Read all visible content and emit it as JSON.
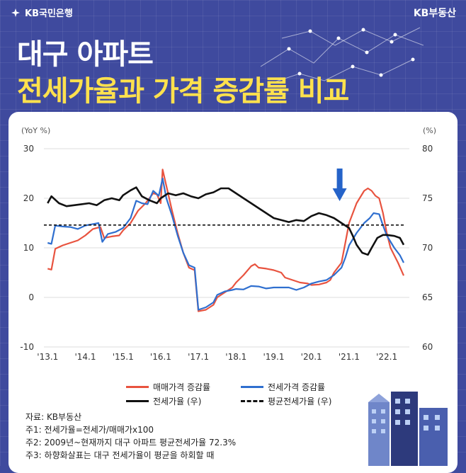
{
  "header": {
    "brand_left": "KB국민은행",
    "brand_right": "KB부동산",
    "title_line1": "대구 아파트",
    "title_line2": "전세가율과 가격 증감률 비교"
  },
  "colors": {
    "background": "#3f4a9e",
    "title_accent": "#ffe14d",
    "sale": "#e8533f",
    "jeonse": "#2f6fcf",
    "ratio": "#111111",
    "arrow": "#2563c9"
  },
  "chart_data": {
    "type": "line",
    "left_axis_label": "(YoY %)",
    "right_axis_label": "(%)",
    "left_ylim": [
      -10,
      30
    ],
    "left_ticks": [
      "30",
      "20",
      "10",
      "0",
      "-10"
    ],
    "right_ylim": [
      60,
      80
    ],
    "right_ticks": [
      "80",
      "75",
      "70",
      "65",
      "60"
    ],
    "x_ticks": [
      "'13.1",
      "'14.1",
      "'15.1",
      "'16.1",
      "'17.1",
      "'18.1",
      "'19.1",
      "'20.1",
      "'21.1",
      "'22.1"
    ],
    "series": [
      {
        "name": "매매가격 증감률",
        "axis": "left",
        "points": [
          [
            2013.0,
            5.8
          ],
          [
            2013.1,
            5.6
          ],
          [
            2013.2,
            9.8
          ],
          [
            2013.4,
            10.5
          ],
          [
            2013.6,
            11.0
          ],
          [
            2013.8,
            11.5
          ],
          [
            2014.0,
            12.5
          ],
          [
            2014.2,
            13.8
          ],
          [
            2014.4,
            14.2
          ],
          [
            2014.5,
            12.0
          ],
          [
            2014.7,
            12.3
          ],
          [
            2014.9,
            12.5
          ],
          [
            2015.0,
            13.5
          ],
          [
            2015.2,
            15.0
          ],
          [
            2015.4,
            17.5
          ],
          [
            2015.6,
            19.0
          ],
          [
            2015.8,
            21.0
          ],
          [
            2015.9,
            20.8
          ],
          [
            2016.0,
            19.0
          ],
          [
            2016.05,
            25.8
          ],
          [
            2016.15,
            22.5
          ],
          [
            2016.3,
            17.5
          ],
          [
            2016.45,
            13.0
          ],
          [
            2016.6,
            9.0
          ],
          [
            2016.75,
            6.0
          ],
          [
            2016.9,
            5.5
          ],
          [
            2017.0,
            -2.8
          ],
          [
            2017.2,
            -2.5
          ],
          [
            2017.4,
            -1.5
          ],
          [
            2017.5,
            0.0
          ],
          [
            2017.7,
            1.0
          ],
          [
            2017.9,
            2.0
          ],
          [
            2018.0,
            3.0
          ],
          [
            2018.2,
            4.5
          ],
          [
            2018.4,
            6.3
          ],
          [
            2018.5,
            6.7
          ],
          [
            2018.6,
            6.0
          ],
          [
            2018.8,
            5.8
          ],
          [
            2019.0,
            5.5
          ],
          [
            2019.2,
            5.0
          ],
          [
            2019.3,
            4.0
          ],
          [
            2019.5,
            3.5
          ],
          [
            2019.7,
            3.0
          ],
          [
            2019.9,
            2.8
          ],
          [
            2020.0,
            2.5
          ],
          [
            2020.2,
            2.6
          ],
          [
            2020.4,
            3.0
          ],
          [
            2020.5,
            3.5
          ],
          [
            2020.6,
            5.0
          ],
          [
            2020.8,
            7.0
          ],
          [
            2020.9,
            11.0
          ],
          [
            2021.0,
            15.0
          ],
          [
            2021.2,
            19.0
          ],
          [
            2021.4,
            21.5
          ],
          [
            2021.5,
            22.0
          ],
          [
            2021.6,
            21.5
          ],
          [
            2021.7,
            20.5
          ],
          [
            2021.8,
            20.0
          ],
          [
            2021.9,
            17.0
          ],
          [
            2022.0,
            13.0
          ],
          [
            2022.1,
            10.0
          ],
          [
            2022.3,
            7.0
          ],
          [
            2022.45,
            4.4
          ]
        ]
      },
      {
        "name": "전세가격 증감률",
        "axis": "left",
        "points": [
          [
            2013.0,
            11.0
          ],
          [
            2013.1,
            10.8
          ],
          [
            2013.2,
            14.5
          ],
          [
            2013.4,
            14.3
          ],
          [
            2013.6,
            14.2
          ],
          [
            2013.8,
            13.8
          ],
          [
            2014.0,
            14.5
          ],
          [
            2014.2,
            14.8
          ],
          [
            2014.35,
            15.0
          ],
          [
            2014.45,
            11.2
          ],
          [
            2014.6,
            12.8
          ],
          [
            2014.8,
            13.2
          ],
          [
            2015.0,
            14.0
          ],
          [
            2015.2,
            16.0
          ],
          [
            2015.35,
            19.5
          ],
          [
            2015.5,
            19.0
          ],
          [
            2015.65,
            18.8
          ],
          [
            2015.8,
            21.5
          ],
          [
            2015.95,
            20.5
          ],
          [
            2016.05,
            24.0
          ],
          [
            2016.15,
            20.0
          ],
          [
            2016.3,
            16.5
          ],
          [
            2016.45,
            12.5
          ],
          [
            2016.6,
            9.0
          ],
          [
            2016.75,
            6.5
          ],
          [
            2016.9,
            6.0
          ],
          [
            2017.0,
            -2.5
          ],
          [
            2017.2,
            -2.0
          ],
          [
            2017.4,
            -1.0
          ],
          [
            2017.5,
            0.5
          ],
          [
            2017.7,
            1.2
          ],
          [
            2017.9,
            1.5
          ],
          [
            2018.0,
            1.7
          ],
          [
            2018.2,
            1.6
          ],
          [
            2018.4,
            2.3
          ],
          [
            2018.6,
            2.2
          ],
          [
            2018.8,
            1.8
          ],
          [
            2019.0,
            2.0
          ],
          [
            2019.2,
            2.0
          ],
          [
            2019.4,
            2.0
          ],
          [
            2019.6,
            1.5
          ],
          [
            2019.8,
            2.0
          ],
          [
            2020.0,
            2.8
          ],
          [
            2020.2,
            3.2
          ],
          [
            2020.4,
            3.5
          ],
          [
            2020.6,
            4.5
          ],
          [
            2020.8,
            6.0
          ],
          [
            2020.9,
            8.0
          ],
          [
            2021.0,
            10.5
          ],
          [
            2021.2,
            13.0
          ],
          [
            2021.4,
            15.0
          ],
          [
            2021.55,
            16.0
          ],
          [
            2021.65,
            17.0
          ],
          [
            2021.8,
            16.8
          ],
          [
            2021.9,
            14.5
          ],
          [
            2022.0,
            12.5
          ],
          [
            2022.2,
            10.0
          ],
          [
            2022.35,
            8.5
          ],
          [
            2022.45,
            7.0
          ]
        ]
      },
      {
        "name": "전세가율 (우)",
        "axis": "right",
        "points": [
          [
            2013.0,
            74.5
          ],
          [
            2013.1,
            75.2
          ],
          [
            2013.3,
            74.5
          ],
          [
            2013.5,
            74.2
          ],
          [
            2013.7,
            74.3
          ],
          [
            2013.9,
            74.4
          ],
          [
            2014.1,
            74.5
          ],
          [
            2014.3,
            74.3
          ],
          [
            2014.5,
            74.8
          ],
          [
            2014.7,
            75.0
          ],
          [
            2014.9,
            74.8
          ],
          [
            2015.0,
            75.3
          ],
          [
            2015.2,
            75.8
          ],
          [
            2015.35,
            76.1
          ],
          [
            2015.5,
            75.2
          ],
          [
            2015.7,
            74.8
          ],
          [
            2015.9,
            74.5
          ],
          [
            2016.0,
            75.0
          ],
          [
            2016.2,
            75.5
          ],
          [
            2016.4,
            75.3
          ],
          [
            2016.6,
            75.5
          ],
          [
            2016.8,
            75.2
          ],
          [
            2017.0,
            75.0
          ],
          [
            2017.2,
            75.4
          ],
          [
            2017.4,
            75.6
          ],
          [
            2017.6,
            76.0
          ],
          [
            2017.8,
            76.0
          ],
          [
            2018.0,
            75.5
          ],
          [
            2018.2,
            75.0
          ],
          [
            2018.4,
            74.5
          ],
          [
            2018.6,
            74.0
          ],
          [
            2018.8,
            73.5
          ],
          [
            2019.0,
            73.0
          ],
          [
            2019.2,
            72.8
          ],
          [
            2019.4,
            72.6
          ],
          [
            2019.6,
            72.8
          ],
          [
            2019.8,
            72.7
          ],
          [
            2020.0,
            73.2
          ],
          [
            2020.2,
            73.5
          ],
          [
            2020.4,
            73.3
          ],
          [
            2020.6,
            73.0
          ],
          [
            2020.8,
            72.5
          ],
          [
            2021.0,
            72.0
          ],
          [
            2021.1,
            71.2
          ],
          [
            2021.2,
            70.3
          ],
          [
            2021.35,
            69.5
          ],
          [
            2021.5,
            69.3
          ],
          [
            2021.6,
            70.0
          ],
          [
            2021.75,
            71.0
          ],
          [
            2021.9,
            71.3
          ],
          [
            2022.0,
            71.3
          ],
          [
            2022.2,
            71.2
          ],
          [
            2022.35,
            71.0
          ],
          [
            2022.45,
            70.3
          ]
        ]
      },
      {
        "name": "평균전세가율 (우)",
        "axis": "right",
        "constant": 72.3
      }
    ]
  },
  "notes": [
    "자료: KB부동산",
    "주1: 전세가율=전세가/매매가x100",
    "주2: 2009년~현재까지 대구 아파트 평균전세가율 72.3%",
    "주3: 하향화살표는 대구 전세가율이 평균을 하회할 때"
  ]
}
